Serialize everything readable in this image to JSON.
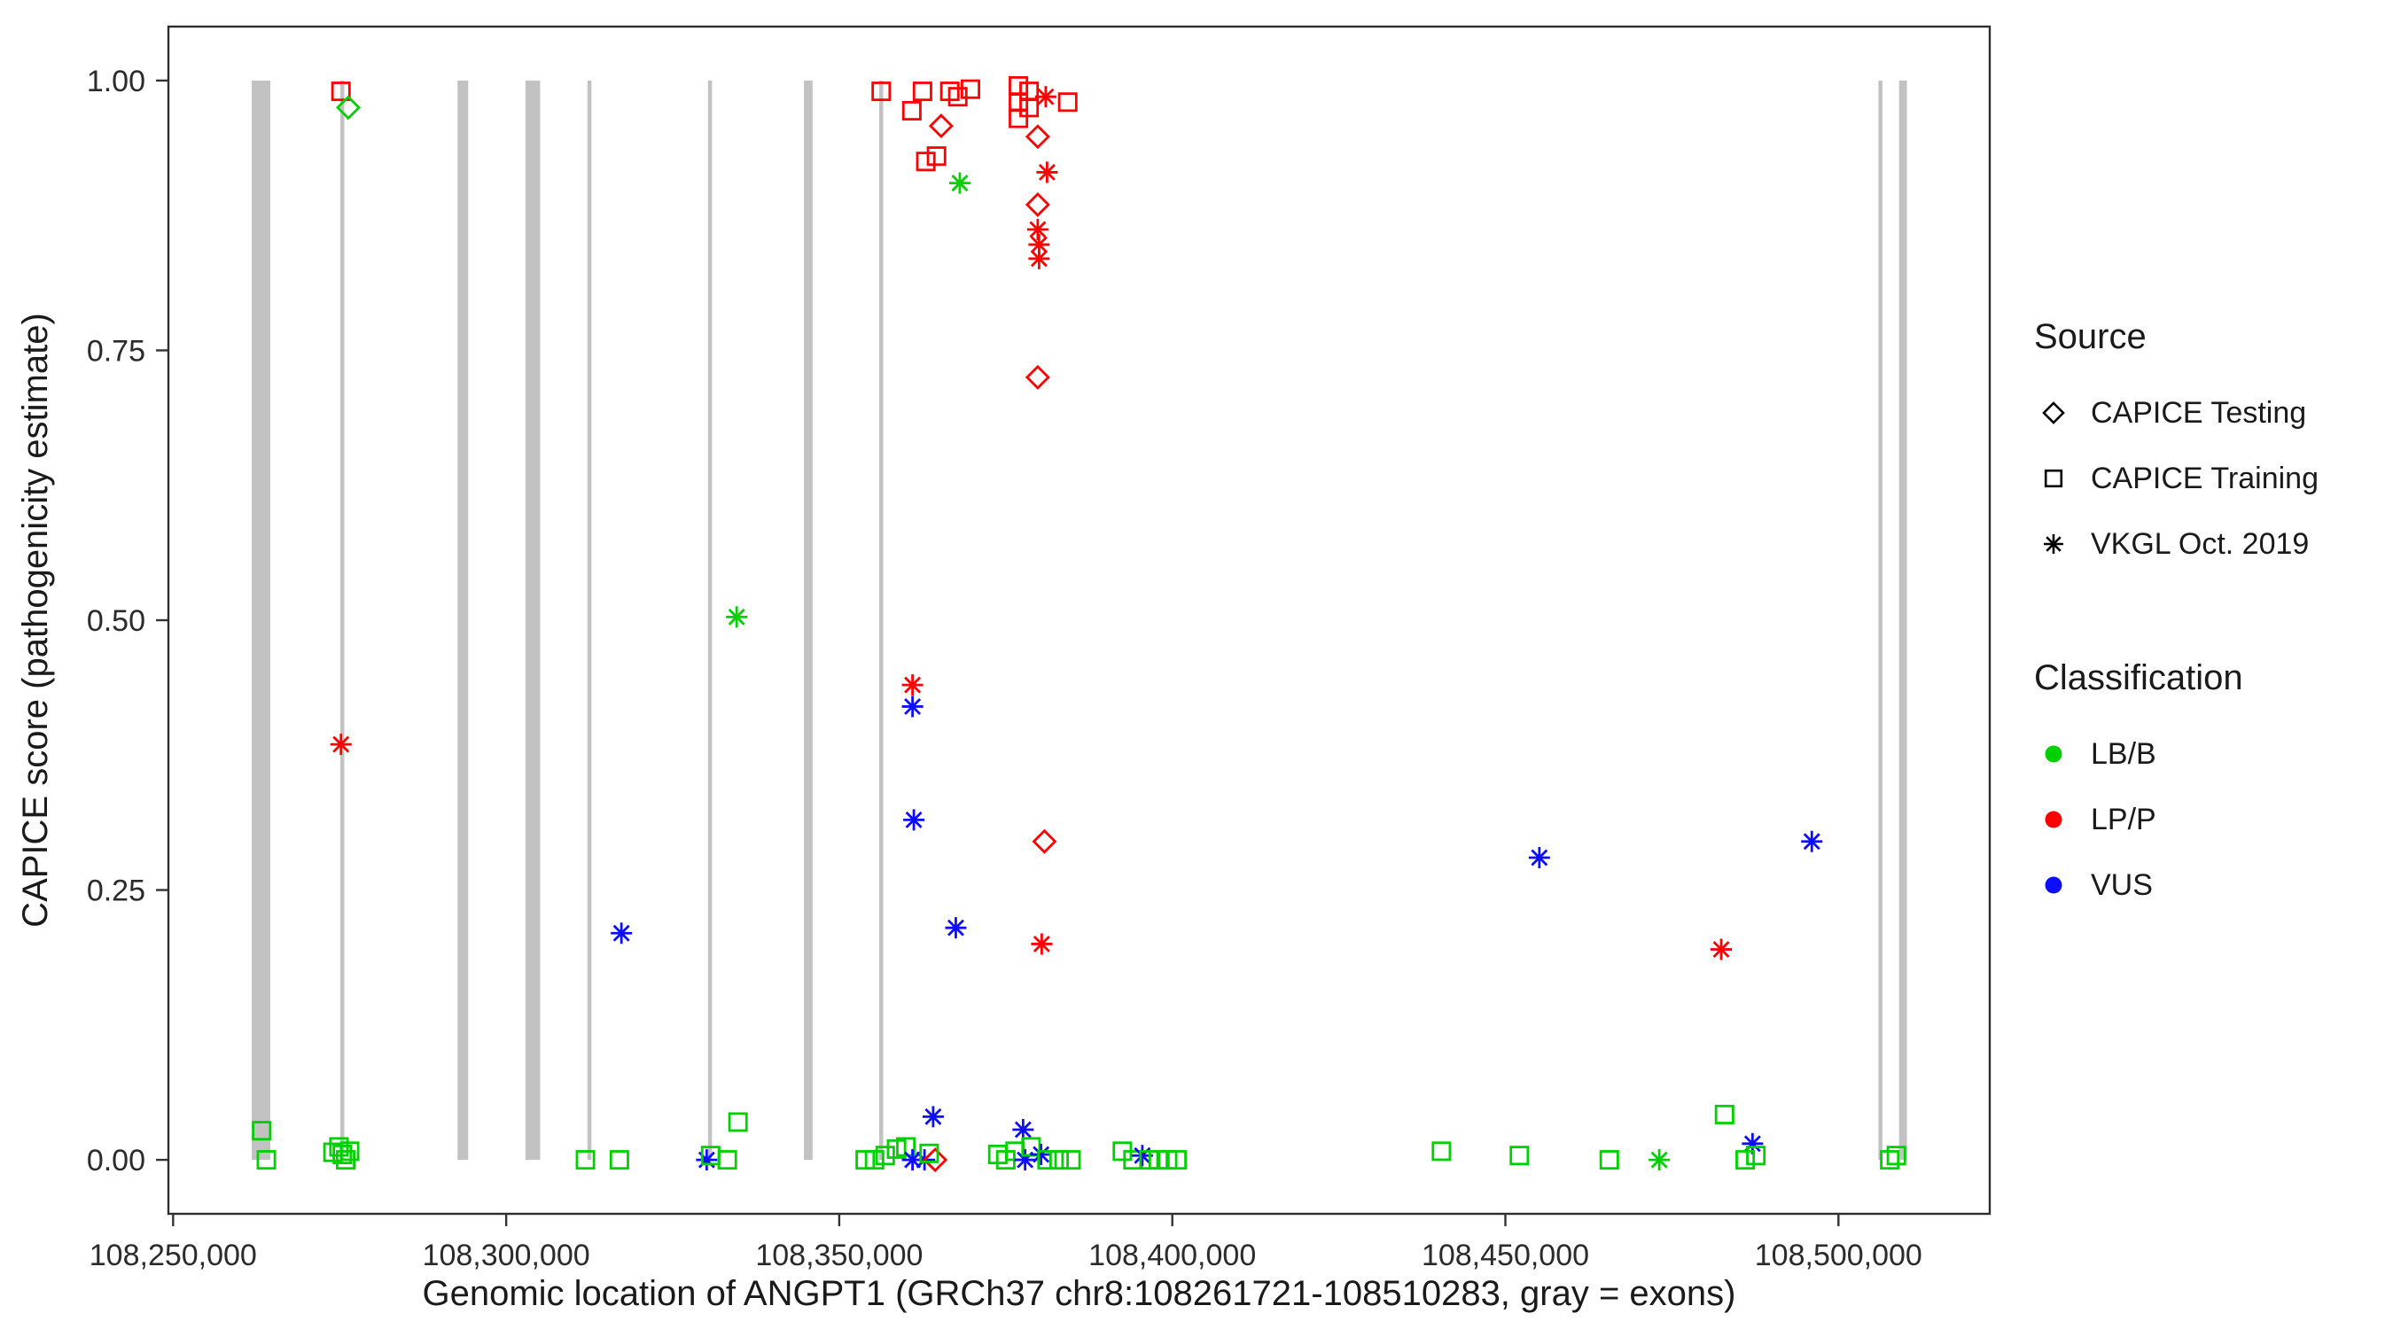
{
  "figure": {
    "background": "#ffffff",
    "panel_border_color": "#2e2e2e",
    "tick_color": "#333333"
  },
  "legend": {
    "source_title": "Source",
    "source_items": [
      {
        "label": "CAPICE Testing",
        "shape": "diamond"
      },
      {
        "label": "CAPICE Training",
        "shape": "square"
      },
      {
        "label": "VKGL Oct. 2019",
        "shape": "asterisk"
      }
    ],
    "classification_title": "Classification",
    "classification_items": [
      {
        "label": "LB/B",
        "color": "#00d000"
      },
      {
        "label": "LP/P",
        "color": "#ff0000"
      },
      {
        "label": "VUS",
        "color": "#0e0eff"
      }
    ]
  },
  "chart_data": {
    "type": "scatter",
    "title": "",
    "xlabel": "Genomic location of ANGPT1 (GRCh37 chr8:108261721-108510283, gray = exons)",
    "ylabel": "CAPICE score (pathogenicity estimate)",
    "xlim": [
      108249293,
      108522711
    ],
    "ylim": [
      -0.05,
      1.05
    ],
    "grid": false,
    "legend_position": "right",
    "x_ticks": [
      {
        "value": 108250000,
        "label": "108,250,000"
      },
      {
        "value": 108300000,
        "label": "108,300,000"
      },
      {
        "value": 108350000,
        "label": "108,350,000"
      },
      {
        "value": 108400000,
        "label": "108,400,000"
      },
      {
        "value": 108450000,
        "label": "108,450,000"
      },
      {
        "value": 108500000,
        "label": "108,500,000"
      }
    ],
    "y_ticks": [
      {
        "value": 0.0,
        "label": "0.00"
      },
      {
        "value": 0.25,
        "label": "0.25"
      },
      {
        "value": 0.5,
        "label": "0.50"
      },
      {
        "value": 0.75,
        "label": "0.75"
      },
      {
        "value": 1.0,
        "label": "1.00"
      }
    ],
    "exon_color": "#c2c2c2",
    "exons": [
      [
        108261800,
        108264600
      ],
      [
        108275100,
        108275700
      ],
      [
        108292700,
        108294300
      ],
      [
        108302900,
        108305100
      ],
      [
        108312200,
        108312800
      ],
      [
        108330300,
        108330900
      ],
      [
        108344700,
        108346000
      ],
      [
        108356000,
        108356600
      ],
      [
        108506000,
        108506600
      ],
      [
        108509100,
        108510283
      ]
    ],
    "colors": {
      "LB/B": "#00d000",
      "LP/P": "#ff0000",
      "VUS": "#0e0eff"
    },
    "shapes": {
      "CAPICE Testing": "diamond",
      "CAPICE Training": "square",
      "VKGL Oct. 2019": "asterisk"
    },
    "points_format": [
      "x_genomic_position",
      "capice_score",
      "source",
      "classification"
    ],
    "points": [
      [
        108275200,
        0.99,
        "CAPICE Training",
        "LP/P"
      ],
      [
        108276300,
        0.975,
        "CAPICE Testing",
        "LB/B"
      ],
      [
        108275200,
        0.385,
        "VKGL Oct. 2019",
        "LP/P"
      ],
      [
        108356300,
        0.99,
        "CAPICE Training",
        "LP/P"
      ],
      [
        108360900,
        0.972,
        "CAPICE Training",
        "LP/P"
      ],
      [
        108362500,
        0.99,
        "CAPICE Training",
        "LP/P"
      ],
      [
        108363000,
        0.925,
        "CAPICE Training",
        "LP/P"
      ],
      [
        108364600,
        0.93,
        "CAPICE Training",
        "LP/P"
      ],
      [
        108365300,
        0.958,
        "CAPICE Testing",
        "LP/P"
      ],
      [
        108366600,
        0.99,
        "CAPICE Training",
        "LP/P"
      ],
      [
        108367800,
        0.985,
        "CAPICE Training",
        "LP/P"
      ],
      [
        108369700,
        0.992,
        "CAPICE Training",
        "LP/P"
      ],
      [
        108368100,
        0.905,
        "VKGL Oct. 2019",
        "LB/B"
      ],
      [
        108376900,
        0.995,
        "CAPICE Training",
        "LP/P"
      ],
      [
        108376900,
        0.98,
        "CAPICE Training",
        "LP/P"
      ],
      [
        108376900,
        0.965,
        "CAPICE Training",
        "LP/P"
      ],
      [
        108378500,
        0.99,
        "CAPICE Training",
        "LP/P"
      ],
      [
        108378500,
        0.975,
        "CAPICE Training",
        "LP/P"
      ],
      [
        108381000,
        0.985,
        "VKGL Oct. 2019",
        "LP/P"
      ],
      [
        108384300,
        0.98,
        "CAPICE Training",
        "LP/P"
      ],
      [
        108379800,
        0.948,
        "CAPICE Testing",
        "LP/P"
      ],
      [
        108381200,
        0.915,
        "VKGL Oct. 2019",
        "LP/P"
      ],
      [
        108379800,
        0.885,
        "CAPICE Testing",
        "LP/P"
      ],
      [
        108379800,
        0.862,
        "VKGL Oct. 2019",
        "LP/P"
      ],
      [
        108380000,
        0.848,
        "VKGL Oct. 2019",
        "LP/P"
      ],
      [
        108380000,
        0.835,
        "VKGL Oct. 2019",
        "LP/P"
      ],
      [
        108379800,
        0.725,
        "CAPICE Testing",
        "LP/P"
      ],
      [
        108380800,
        0.295,
        "CAPICE Testing",
        "LP/P"
      ],
      [
        108380400,
        0.2,
        "VKGL Oct. 2019",
        "LP/P"
      ],
      [
        108334600,
        0.503,
        "VKGL Oct. 2019",
        "LB/B"
      ],
      [
        108317300,
        0.21,
        "VKGL Oct. 2019",
        "VUS"
      ],
      [
        108361000,
        0.44,
        "VKGL Oct. 2019",
        "LP/P"
      ],
      [
        108361000,
        0.42,
        "VKGL Oct. 2019",
        "VUS"
      ],
      [
        108361200,
        0.315,
        "VKGL Oct. 2019",
        "VUS"
      ],
      [
        108367500,
        0.215,
        "VKGL Oct. 2019",
        "VUS"
      ],
      [
        108364100,
        0.04,
        "VKGL Oct. 2019",
        "VUS"
      ],
      [
        108455100,
        0.28,
        "VKGL Oct. 2019",
        "VUS"
      ],
      [
        108496000,
        0.295,
        "VKGL Oct. 2019",
        "VUS"
      ],
      [
        108482400,
        0.195,
        "VKGL Oct. 2019",
        "LP/P"
      ],
      [
        108482900,
        0.042,
        "CAPICE Training",
        "LB/B"
      ],
      [
        108487100,
        0.015,
        "VKGL Oct. 2019",
        "VUS"
      ],
      [
        108263300,
        0.027,
        "CAPICE Training",
        "LB/B"
      ],
      [
        108264000,
        0.0,
        "CAPICE Training",
        "LB/B"
      ],
      [
        108274000,
        0.007,
        "CAPICE Training",
        "LB/B"
      ],
      [
        108274900,
        0.012,
        "CAPICE Training",
        "LB/B"
      ],
      [
        108275400,
        0.005,
        "CAPICE Training",
        "LB/B"
      ],
      [
        108275900,
        0.0,
        "CAPICE Training",
        "LB/B"
      ],
      [
        108276500,
        0.008,
        "CAPICE Training",
        "LB/B"
      ],
      [
        108311900,
        0.0,
        "CAPICE Training",
        "LB/B"
      ],
      [
        108317000,
        0.0,
        "CAPICE Training",
        "LB/B"
      ],
      [
        108330100,
        0.0,
        "VKGL Oct. 2019",
        "VUS"
      ],
      [
        108330700,
        0.004,
        "CAPICE Training",
        "LB/B"
      ],
      [
        108333200,
        0.0,
        "CAPICE Training",
        "LB/B"
      ],
      [
        108334800,
        0.035,
        "CAPICE Training",
        "LB/B"
      ],
      [
        108353900,
        0.0,
        "CAPICE Training",
        "LB/B"
      ],
      [
        108355300,
        0.0,
        "CAPICE Training",
        "LB/B"
      ],
      [
        108356900,
        0.004,
        "CAPICE Training",
        "LB/B"
      ],
      [
        108358600,
        0.01,
        "CAPICE Training",
        "LB/B"
      ],
      [
        108360000,
        0.012,
        "CAPICE Training",
        "LB/B"
      ],
      [
        108361000,
        0.0,
        "VKGL Oct. 2019",
        "VUS"
      ],
      [
        108362800,
        0.0,
        "VKGL Oct. 2019",
        "VUS"
      ],
      [
        108364400,
        0.0,
        "CAPICE Testing",
        "LP/P"
      ],
      [
        108363500,
        0.006,
        "CAPICE Training",
        "LB/B"
      ],
      [
        108373800,
        0.005,
        "CAPICE Training",
        "LB/B"
      ],
      [
        108375000,
        0.0,
        "CAPICE Training",
        "LB/B"
      ],
      [
        108376400,
        0.008,
        "CAPICE Training",
        "LB/B"
      ],
      [
        108377600,
        0.028,
        "VKGL Oct. 2019",
        "VUS"
      ],
      [
        108377900,
        0.0,
        "VKGL Oct. 2019",
        "VUS"
      ],
      [
        108378800,
        0.012,
        "CAPICE Training",
        "LB/B"
      ],
      [
        108380300,
        0.005,
        "VKGL Oct. 2019",
        "VUS"
      ],
      [
        108381200,
        0.0,
        "CAPICE Training",
        "LB/B"
      ],
      [
        108383000,
        0.0,
        "CAPICE Training",
        "LB/B"
      ],
      [
        108384800,
        0.0,
        "CAPICE Training",
        "LB/B"
      ],
      [
        108392500,
        0.008,
        "CAPICE Training",
        "LB/B"
      ],
      [
        108394100,
        0.0,
        "CAPICE Training",
        "LB/B"
      ],
      [
        108395500,
        0.004,
        "VKGL Oct. 2019",
        "VUS"
      ],
      [
        108396500,
        0.0,
        "CAPICE Training",
        "LB/B"
      ],
      [
        108397900,
        0.0,
        "CAPICE Training",
        "LB/B"
      ],
      [
        108399300,
        0.0,
        "CAPICE Training",
        "LB/B"
      ],
      [
        108400700,
        0.0,
        "CAPICE Training",
        "LB/B"
      ],
      [
        108440400,
        0.008,
        "CAPICE Training",
        "LB/B"
      ],
      [
        108452100,
        0.004,
        "CAPICE Training",
        "LB/B"
      ],
      [
        108465600,
        0.0,
        "CAPICE Training",
        "LB/B"
      ],
      [
        108473100,
        0.0,
        "VKGL Oct. 2019",
        "LB/B"
      ],
      [
        108486000,
        0.0,
        "CAPICE Training",
        "LB/B"
      ],
      [
        108487600,
        0.004,
        "CAPICE Training",
        "LB/B"
      ],
      [
        108507700,
        0.0,
        "CAPICE Training",
        "LB/B"
      ],
      [
        108508700,
        0.004,
        "CAPICE Training",
        "LB/B"
      ]
    ]
  }
}
